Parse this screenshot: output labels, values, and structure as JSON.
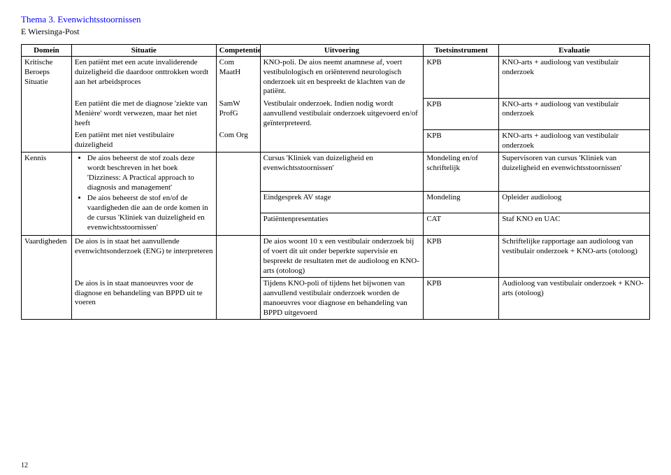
{
  "header": {
    "title": "Thema 3. Evenwichtsstoornissen",
    "subtitle": "E Wiersinga-Post"
  },
  "columns": [
    "Domein",
    "Situatie",
    "Competentie",
    "Uitvoering",
    "Toetsinstrument",
    "Evaluatie"
  ],
  "rows": {
    "r1": {
      "domein": "Kritische Beroeps Situatie",
      "situatie": "Een patiënt met een acute invaliderende duizeligheid die daardoor onttrokken wordt aan het arbeidsproces",
      "comp": "Com MaatH",
      "uitv": "KNO-poli. De aios neemt anamnese af, voert vestibulologisch en oriënterend neurologisch onderzoek uit en bespreekt de klachten van de patiënt.",
      "toets": "KPB",
      "eval": "KNO-arts + audioloog van vestibulair onderzoek"
    },
    "r2": {
      "situatie": "Een patiënt die met de diagnose 'ziekte van Menière' wordt verwezen, maar het niet heeft",
      "comp": "SamW ProfG",
      "uitv": "Vestibulair onderzoek. Indien nodig wordt aanvullend vestibulair onderzoek uitgevoerd en/of geïnterpreteerd.",
      "toets": "KPB",
      "eval": "KNO-arts + audioloog van vestibulair onderzoek"
    },
    "r3": {
      "situatie": "Een patiënt met niet vestibulaire duizeligheid",
      "comp": "Com Org",
      "toets": "KPB",
      "eval": "KNO-arts + audioloog van vestibulair onderzoek"
    },
    "r4": {
      "domein": "Kennis",
      "b1": "De aios beheerst de stof zoals deze wordt beschreven in het boek 'Dizziness: A Practical approach to diagnosis and management'",
      "b2": "De aios beheerst de stof en/of de vaardigheden die aan de orde komen in de cursus 'Kliniek van duizeligheid en evenwichtsstoornissen'",
      "uitv": "Cursus 'Kliniek van duizeligheid en evenwichtsstoornissen'",
      "toets": "Mondeling en/of schriftelijk",
      "eval": "Supervisoren van cursus 'Kliniek van duizeligheid en evenwichtsstoornissen'"
    },
    "r5": {
      "uitv": "Eindgesprek AV stage",
      "toets": "Mondeling",
      "eval": "Opleider audioloog"
    },
    "r6": {
      "uitv": "Patiëntenpresentaties",
      "toets": "CAT",
      "eval": "Staf  KNO en UAC"
    },
    "r7": {
      "domein": "Vaardigheden",
      "sit": "De aios is in staat het aanvullende evenwichtsonderzoek (ENG) te interpreteren",
      "uitv": "De aios woont 10 x een vestibulair onderzoek bij of voert dit uit onder beperkte supervisie en bespreekt de resultaten met de audioloog en KNO-arts (otoloog)",
      "toets": "KPB",
      "eval": "Schriftelijke rapportage aan audioloog van vestibulair onderzoek + KNO-arts (otoloog)"
    },
    "r8": {
      "sit": "De aios is in staat manoeuvres voor de diagnose en behandeling van BPPD uit te voeren",
      "uitv": "Tijdens KNO-poli of tijdens het bijwonen van aanvullend vestibulair onderzoek worden de manoeuvres voor diagnose en behandeling van BPPD uitgevoerd",
      "toets": "KPB",
      "eval": "Audioloog van vestibulair onderzoek + KNO-arts (otoloog)"
    }
  },
  "page_number": "12"
}
